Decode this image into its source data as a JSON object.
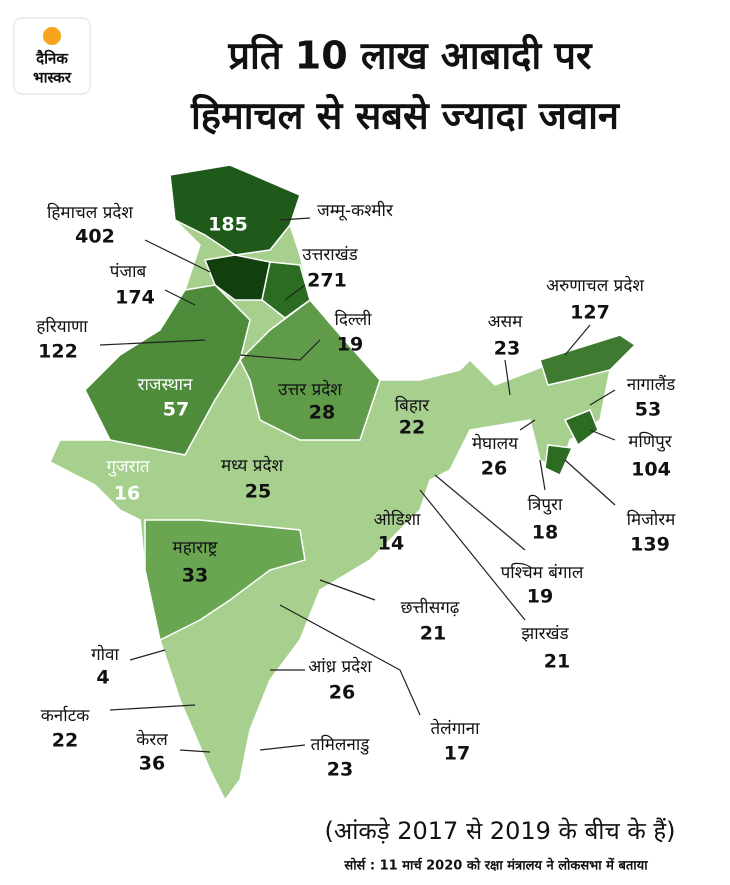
{
  "logo": {
    "line1": "दैनिक",
    "line2": "भास्कर"
  },
  "title": [
    "प्रति 10 लाख आबादी पर",
    "हिमाचल से सबसे ज्यादा जवान"
  ],
  "states": [
    {
      "name": "हिमाचल प्रदेश",
      "value": 402
    },
    {
      "name": "जम्मू-कश्मीर",
      "value": 185
    },
    {
      "name": "उत्तराखंड",
      "value": 271
    },
    {
      "name": "पंजाब",
      "value": 174
    },
    {
      "name": "हरियाणा",
      "value": 122
    },
    {
      "name": "दिल्ली",
      "value": 19
    },
    {
      "name": "राजस्थान",
      "value": 57
    },
    {
      "name": "उत्तर प्रदेश",
      "value": 28
    },
    {
      "name": "बिहार",
      "value": 22
    },
    {
      "name": "गुजरात",
      "value": 16
    },
    {
      "name": "मध्य प्रदेश",
      "value": 25
    },
    {
      "name": "ओडिशा",
      "value": 14
    },
    {
      "name": "महाराष्ट्र",
      "value": 33
    },
    {
      "name": "छत्तीसगढ़",
      "value": 21
    },
    {
      "name": "गोवा",
      "value": 4
    },
    {
      "name": "आंध्र प्रदेश",
      "value": 26
    },
    {
      "name": "कर्नाटक",
      "value": 22
    },
    {
      "name": "केरल",
      "value": 36
    },
    {
      "name": "तमिलनाडु",
      "value": 23
    },
    {
      "name": "तेलंगाना",
      "value": 17
    },
    {
      "name": "झारखंड",
      "value": 21
    },
    {
      "name": "पश्चिम बंगाल",
      "value": 19
    },
    {
      "name": "असम",
      "value": 23
    },
    {
      "name": "अरुणाचल प्रदेश",
      "value": 127
    },
    {
      "name": "नागालैंड",
      "value": 53
    },
    {
      "name": "मेघालय",
      "value": 26
    },
    {
      "name": "मणिपुर",
      "value": 104
    },
    {
      "name": "त्रिपुरा",
      "value": 18
    },
    {
      "name": "मिजोरम",
      "value": 139
    }
  ],
  "note": "(आंकड़े 2017 से 2019 के बीच के हैं)",
  "source": "सोर्स : 11 मार्च 2020 को रक्षा मंत्रालय ने लोकसभा में बताया"
}
